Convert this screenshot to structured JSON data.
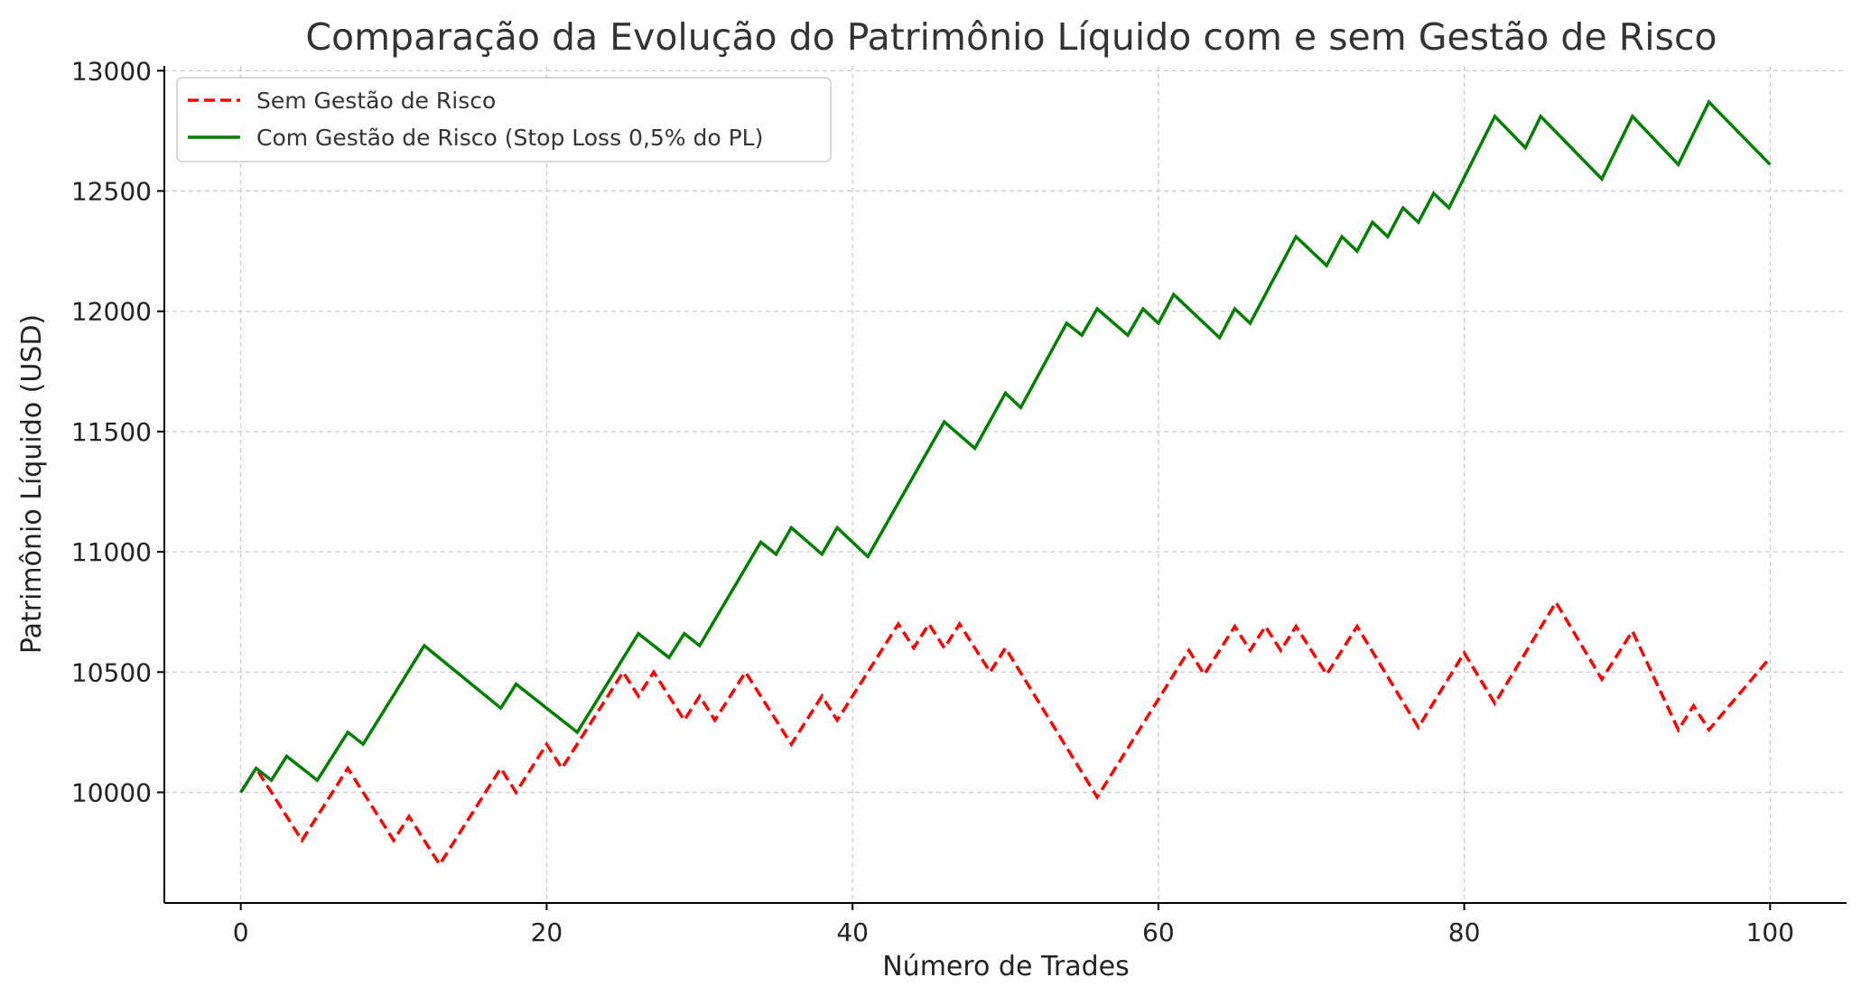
{
  "chart_data": {
    "type": "line",
    "title": "Comparação da Evolução do Patrimônio Líquido com e sem Gestão de Risco",
    "xlabel": "Número de Trades",
    "ylabel": "Patrimônio Líquido (USD)",
    "xlim": [
      -5,
      105
    ],
    "ylim": [
      9540,
      13020
    ],
    "xticks": [
      0,
      20,
      40,
      60,
      80,
      100
    ],
    "yticks": [
      10000,
      10500,
      11000,
      11500,
      12000,
      12500,
      13000
    ],
    "grid": true,
    "legend_position": "top-left",
    "series": [
      {
        "name": "Sem Gestão de Risco",
        "color": "#ff0000",
        "line_style": "dashed",
        "points": [
          [
            0,
            10000
          ],
          [
            1,
            10100
          ],
          [
            4,
            9800
          ],
          [
            7,
            10100
          ],
          [
            10,
            9800
          ],
          [
            11,
            9900
          ],
          [
            13,
            9700
          ],
          [
            17,
            10100
          ],
          [
            18,
            10000
          ],
          [
            20,
            10200
          ],
          [
            21,
            10100
          ],
          [
            25,
            10500
          ],
          [
            26,
            10400
          ],
          [
            27,
            10500
          ],
          [
            29,
            10300
          ],
          [
            30,
            10400
          ],
          [
            31,
            10300
          ],
          [
            33,
            10500
          ],
          [
            36,
            10200
          ],
          [
            38,
            10400
          ],
          [
            39,
            10300
          ],
          [
            43,
            10700
          ],
          [
            44,
            10600
          ],
          [
            45,
            10700
          ],
          [
            46,
            10600
          ],
          [
            47,
            10700
          ],
          [
            49,
            10500
          ],
          [
            50,
            10600
          ],
          [
            56,
            9980
          ],
          [
            62,
            10590
          ],
          [
            63,
            10490
          ],
          [
            65,
            10690
          ],
          [
            66,
            10590
          ],
          [
            67,
            10690
          ],
          [
            68,
            10590
          ],
          [
            69,
            10690
          ],
          [
            71,
            10490
          ],
          [
            73,
            10690
          ],
          [
            77,
            10270
          ],
          [
            80,
            10580
          ],
          [
            82,
            10370
          ],
          [
            86,
            10790
          ],
          [
            89,
            10470
          ],
          [
            91,
            10670
          ],
          [
            94,
            10260
          ],
          [
            95,
            10360
          ],
          [
            96,
            10260
          ],
          [
            100,
            10560
          ]
        ]
      },
      {
        "name": "Com Gestão de Risco (Stop Loss 0,5% do PL)",
        "color": "#008000",
        "line_style": "solid",
        "points": [
          [
            0,
            10000
          ],
          [
            1,
            10100
          ],
          [
            2,
            10050
          ],
          [
            3,
            10150
          ],
          [
            5,
            10050
          ],
          [
            7,
            10250
          ],
          [
            8,
            10200
          ],
          [
            12,
            10610
          ],
          [
            17,
            10350
          ],
          [
            18,
            10450
          ],
          [
            22,
            10250
          ],
          [
            26,
            10660
          ],
          [
            28,
            10560
          ],
          [
            29,
            10660
          ],
          [
            30,
            10610
          ],
          [
            34,
            11040
          ],
          [
            35,
            10990
          ],
          [
            36,
            11100
          ],
          [
            38,
            10990
          ],
          [
            39,
            11100
          ],
          [
            41,
            10980
          ],
          [
            46,
            11540
          ],
          [
            48,
            11430
          ],
          [
            50,
            11660
          ],
          [
            51,
            11600
          ],
          [
            54,
            11950
          ],
          [
            55,
            11900
          ],
          [
            56,
            12010
          ],
          [
            58,
            11900
          ],
          [
            59,
            12010
          ],
          [
            60,
            11950
          ],
          [
            61,
            12070
          ],
          [
            64,
            11890
          ],
          [
            65,
            12010
          ],
          [
            66,
            11950
          ],
          [
            69,
            12310
          ],
          [
            71,
            12190
          ],
          [
            72,
            12310
          ],
          [
            73,
            12250
          ],
          [
            74,
            12370
          ],
          [
            75,
            12310
          ],
          [
            76,
            12430
          ],
          [
            77,
            12370
          ],
          [
            78,
            12490
          ],
          [
            79,
            12430
          ],
          [
            82,
            12810
          ],
          [
            84,
            12680
          ],
          [
            85,
            12810
          ],
          [
            89,
            12550
          ],
          [
            91,
            12810
          ],
          [
            94,
            12610
          ],
          [
            96,
            12870
          ],
          [
            100,
            12610
          ]
        ]
      }
    ]
  }
}
